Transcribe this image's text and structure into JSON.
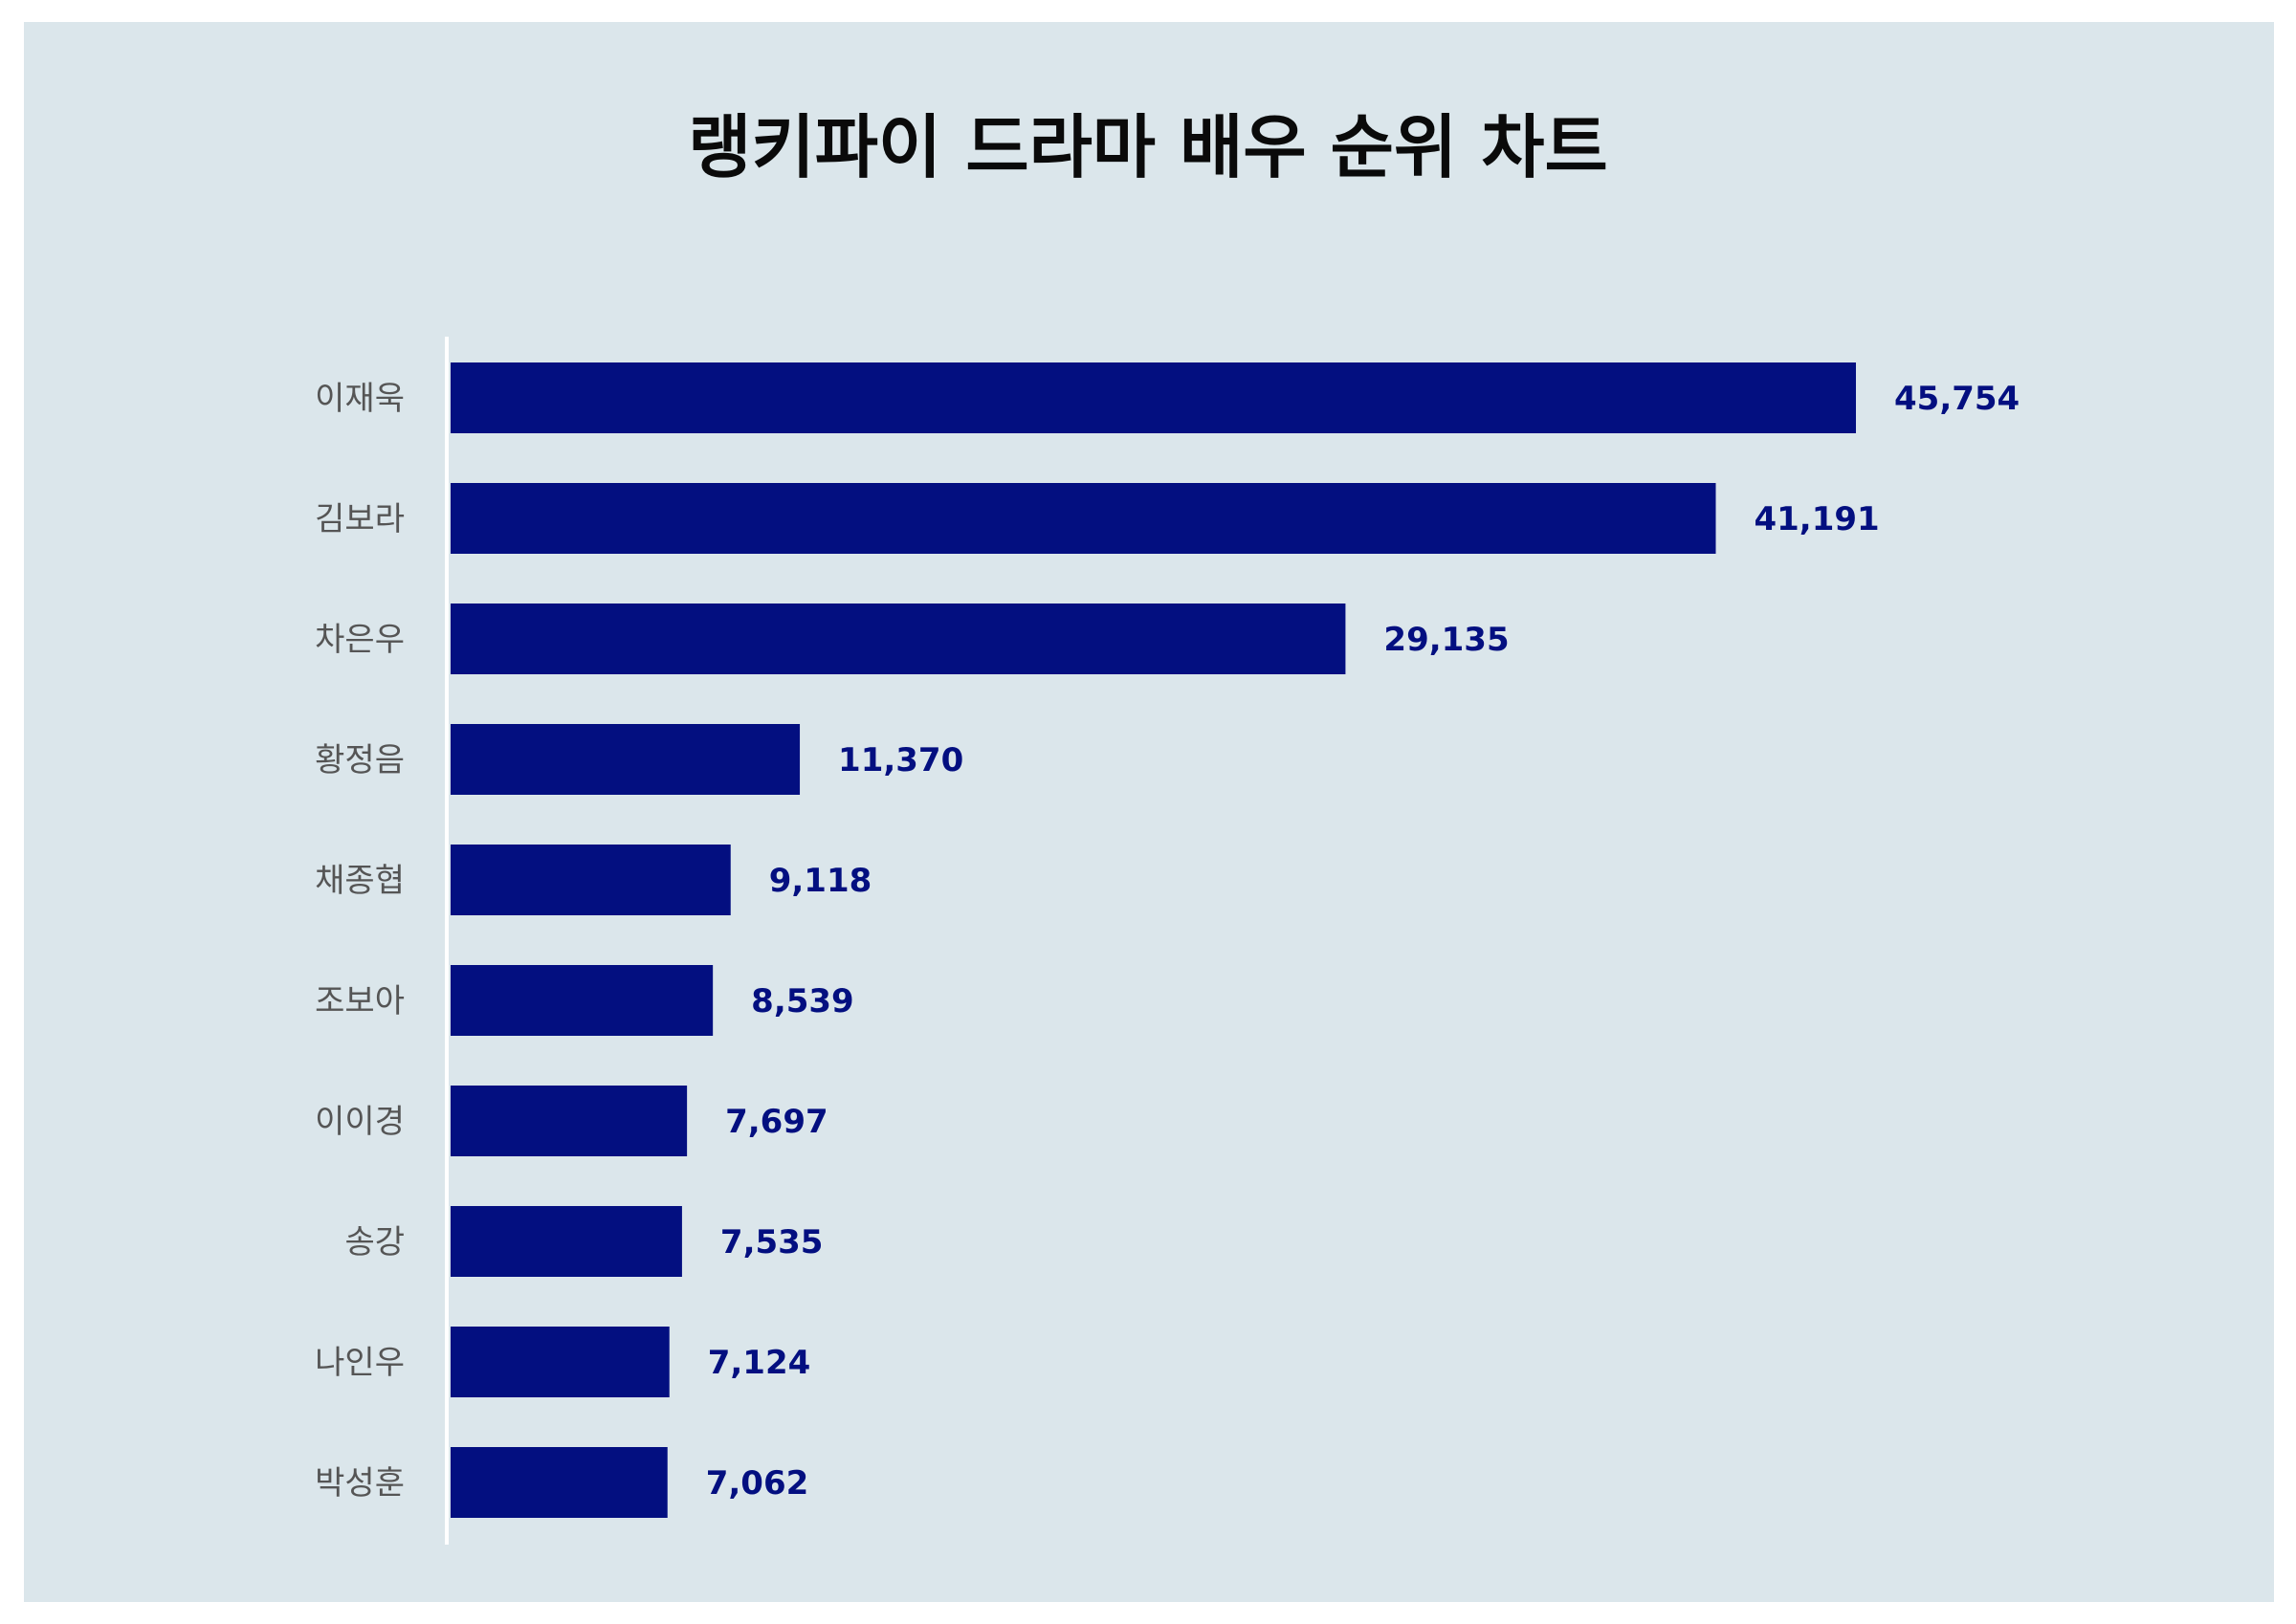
{
  "chart_data": {
    "type": "bar",
    "orientation": "horizontal",
    "title": "랭키파이 드라마 배우 순위 차트",
    "categories": [
      "이재욱",
      "김보라",
      "차은우",
      "황정음",
      "채종협",
      "조보아",
      "이이경",
      "송강",
      "나인우",
      "박성훈"
    ],
    "values": [
      45754,
      41191,
      29135,
      11370,
      9118,
      8539,
      7697,
      7535,
      7124,
      7062
    ],
    "value_labels": [
      "45,754",
      "41,191",
      "29,135",
      "11,370",
      "9,118",
      "8,539",
      "7,697",
      "7,535",
      "7,124",
      "7,062"
    ],
    "xlim": [
      0,
      45754
    ],
    "grid": false,
    "legend": "none"
  },
  "colors": {
    "background": "#dbe6eb",
    "bar": "#030f80",
    "value_label": "#030f80",
    "category_label": "#555555",
    "axis_line": "#ffffff",
    "title": "#0a0a0a"
  }
}
